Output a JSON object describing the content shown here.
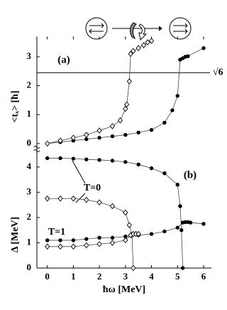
{
  "chart_data": [
    {
      "type": "line",
      "panel_label": "(a)",
      "y_label": "<tₓ> [ħ]",
      "xlim": [
        -0.4,
        6.3
      ],
      "xticks": [
        0,
        1,
        2,
        3,
        4,
        5,
        6
      ],
      "ylim": [
        -0.2,
        3.7
      ],
      "yticks": [
        0,
        1,
        2,
        3
      ],
      "hline": 2.449,
      "hline_label": "√6",
      "series": [
        {
          "color": "#000000",
          "marker": "circle",
          "x": [
            0,
            0.5,
            1,
            1.5,
            2,
            2.5,
            3,
            3.5,
            4,
            4.5,
            4.8,
            5,
            5.1,
            5.2,
            5.3,
            5.4,
            6
          ],
          "values": [
            0,
            0.05,
            0.1,
            0.15,
            0.2,
            0.25,
            0.3,
            0.38,
            0.47,
            0.72,
            1.15,
            1.65,
            2.9,
            2.95,
            3.0,
            3.02,
            3.3
          ]
        },
        {
          "color": "#000000",
          "marker": "diamond",
          "x": [
            0,
            0.5,
            1,
            1.5,
            2,
            2.5,
            2.8,
            3,
            3.05,
            3.15,
            3.2,
            3.3,
            3.5,
            3.7,
            3.85,
            4
          ],
          "values": [
            0,
            0.1,
            0.2,
            0.3,
            0.45,
            0.6,
            0.8,
            1.2,
            1.35,
            2.15,
            3.1,
            3.2,
            3.3,
            3.4,
            3.5,
            3.55
          ]
        }
      ]
    },
    {
      "type": "line",
      "panel_label": "(b)",
      "y_label": "Δ [MeV]",
      "x_label": "ħω [MeV]",
      "xlim": [
        -0.4,
        6.3
      ],
      "xticks": [
        0,
        1,
        2,
        3,
        4,
        5,
        6
      ],
      "ylim": [
        0,
        4.7
      ],
      "yticks": [
        0,
        1,
        2,
        3,
        4
      ],
      "annotations": [
        "T=0",
        "T=1"
      ],
      "series": [
        {
          "color": "#000000",
          "marker": "circle",
          "x": [
            0,
            0.5,
            1,
            1.5,
            2,
            2.5,
            3,
            3.5,
            4,
            4.5,
            5,
            5.1,
            5.15,
            5.2
          ],
          "values": [
            4.35,
            4.35,
            4.33,
            4.3,
            4.28,
            4.25,
            4.2,
            4.1,
            3.95,
            3.75,
            3.3,
            2.45,
            1.5,
            0
          ]
        },
        {
          "color": "#000000",
          "marker": "diamond",
          "x": [
            0,
            0.5,
            1,
            1.5,
            2,
            2.5,
            3,
            3.15,
            3.25,
            3.3
          ],
          "values": [
            2.75,
            2.75,
            2.75,
            2.7,
            2.6,
            2.45,
            2.2,
            1.7,
            1.3,
            0
          ]
        },
        {
          "color": "#000000",
          "marker": "circle",
          "x": [
            0,
            0.5,
            1,
            1.5,
            2,
            2.5,
            3,
            3.5,
            4,
            4.5,
            5,
            5.2,
            5.3,
            5.4,
            5.5,
            6
          ],
          "values": [
            1.1,
            1.1,
            1.1,
            1.15,
            1.2,
            1.2,
            1.25,
            1.3,
            1.35,
            1.45,
            1.6,
            1.8,
            1.82,
            1.82,
            1.8,
            1.75
          ]
        },
        {
          "color": "#000000",
          "marker": "diamond",
          "x": [
            0,
            0.5,
            1,
            1.5,
            2,
            2.5,
            3,
            3.2,
            3.3,
            3.4,
            3.5
          ],
          "values": [
            0.85,
            0.85,
            0.85,
            0.9,
            0.95,
            1.0,
            1.1,
            1.3,
            1.35,
            1.35,
            1.35
          ]
        }
      ]
    }
  ]
}
